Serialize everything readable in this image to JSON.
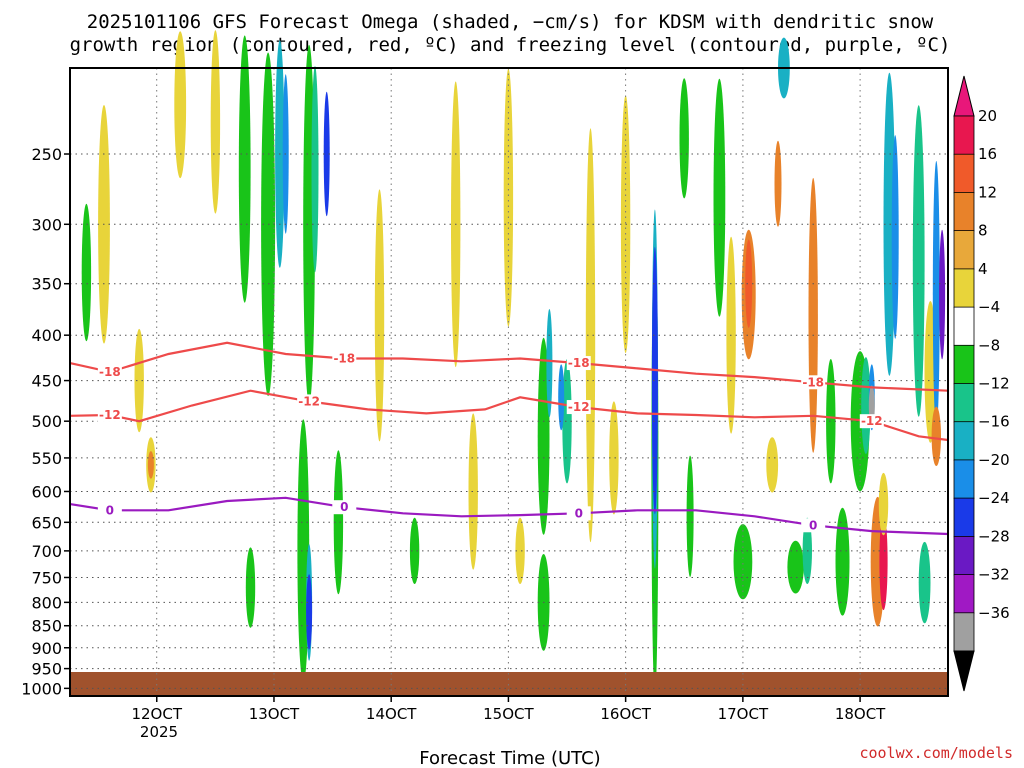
{
  "title": {
    "line1": "2025101106 GFS Forecast Omega (shaded, −cm/s) for KDSM with dendritic snow",
    "line2": "growth region (contoured, red, ºC) and freezing level (contoured, purple, ºC)"
  },
  "credit": "coolwx.com/models",
  "chart_data": {
    "type": "heatmap",
    "title": "2025101106 GFS Forecast Omega (shaded, −cm/s) for KDSM with dendritic snow growth region (contoured, red, ºC) and freezing level (contoured, purple, ºC)",
    "xlabel": "Forecast Time (UTC)",
    "ylabel": "",
    "x_ticks": [
      "12OCT",
      "13OCT",
      "14OCT",
      "15OCT",
      "16OCT",
      "17OCT",
      "18OCT"
    ],
    "x_year_label": "2025",
    "y_ticks": [
      250,
      300,
      350,
      400,
      450,
      500,
      550,
      600,
      650,
      700,
      750,
      800,
      850,
      900,
      950,
      1000
    ],
    "xlim_days": [
      11.26,
      18.75
    ],
    "ylim_hpa": [
      200,
      1020
    ],
    "grid": true,
    "colorbar": {
      "levels": [
        20,
        16,
        12,
        8,
        4,
        -4,
        -8,
        -12,
        -16,
        -20,
        -24,
        -28,
        -32,
        -36
      ],
      "labels": [
        "20",
        "16",
        "12",
        "8",
        "4",
        "−4",
        "−8",
        "−12",
        "−16",
        "−20",
        "−24",
        "−28",
        "−32",
        "−36"
      ],
      "colors": [
        "#e8174f",
        "#f05a2a",
        "#e8822a",
        "#e8a83a",
        "#e8d43a",
        "#ffffff",
        "#19c419",
        "#19c48a",
        "#19b0c4",
        "#1a8ee8",
        "#1a3ae8",
        "#6a19c4",
        "#a019c4",
        "#a0a0a0"
      ],
      "top_arrow_color": "#e8177a",
      "bottom_arrow_color": "#000000"
    },
    "contours": [
      {
        "label": "-18",
        "color": "#ee4a4a",
        "values": [
          [
            11.26,
            430
          ],
          [
            11.6,
            440
          ],
          [
            12.1,
            420
          ],
          [
            12.6,
            408
          ],
          [
            13.1,
            420
          ],
          [
            13.6,
            425
          ],
          [
            14.1,
            425
          ],
          [
            14.6,
            428
          ],
          [
            15.1,
            425
          ],
          [
            15.6,
            430
          ],
          [
            16.1,
            436
          ],
          [
            16.6,
            442
          ],
          [
            17.1,
            446
          ],
          [
            17.6,
            452
          ],
          [
            18.1,
            458
          ],
          [
            18.75,
            462
          ]
        ]
      },
      {
        "label": "-12",
        "color": "#ee4a4a",
        "values": [
          [
            11.26,
            493
          ],
          [
            11.6,
            492
          ],
          [
            11.85,
            500
          ],
          [
            12.3,
            480
          ],
          [
            12.8,
            462
          ],
          [
            13.3,
            475
          ],
          [
            13.8,
            485
          ],
          [
            14.3,
            490
          ],
          [
            14.8,
            485
          ],
          [
            15.1,
            470
          ],
          [
            15.6,
            482
          ],
          [
            16.1,
            490
          ],
          [
            16.6,
            492
          ],
          [
            17.1,
            495
          ],
          [
            17.6,
            493
          ],
          [
            18.1,
            500
          ],
          [
            18.5,
            520
          ],
          [
            18.75,
            525
          ]
        ]
      },
      {
        "label": "0",
        "color": "#9a1ac0",
        "values": [
          [
            11.26,
            620
          ],
          [
            11.6,
            630
          ],
          [
            12.1,
            630
          ],
          [
            12.6,
            615
          ],
          [
            13.1,
            610
          ],
          [
            13.6,
            625
          ],
          [
            14.1,
            635
          ],
          [
            14.6,
            640
          ],
          [
            15.1,
            638
          ],
          [
            15.6,
            635
          ],
          [
            16.1,
            630
          ],
          [
            16.6,
            630
          ],
          [
            17.1,
            640
          ],
          [
            17.6,
            655
          ],
          [
            18.1,
            665
          ],
          [
            18.75,
            670
          ]
        ]
      }
    ]
  }
}
